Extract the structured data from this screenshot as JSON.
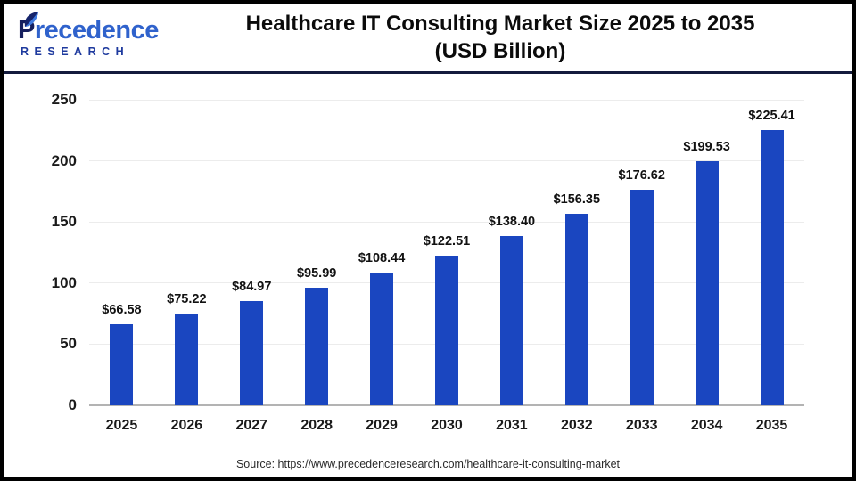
{
  "header": {
    "logo": {
      "brand_top": "Precedence",
      "brand_bottom": "RESEARCH"
    },
    "title_line1": "Healthcare IT Consulting Market Size 2025 to 2035",
    "title_line2": "(USD Billion)"
  },
  "chart_data": {
    "type": "bar",
    "title": "Healthcare IT Consulting Market Size 2025 to 2035 (USD Billion)",
    "categories": [
      "2025",
      "2026",
      "2027",
      "2028",
      "2029",
      "2030",
      "2031",
      "2032",
      "2033",
      "2034",
      "2035"
    ],
    "values": [
      66.58,
      75.22,
      84.97,
      95.99,
      108.44,
      122.51,
      138.4,
      156.35,
      176.62,
      199.53,
      225.41
    ],
    "value_labels": [
      "$66.58",
      "$75.22",
      "$84.97",
      "$95.99",
      "$108.44",
      "$122.51",
      "$138.40",
      "$156.35",
      "$176.62",
      "$199.53",
      "$225.41"
    ],
    "xlabel": "",
    "ylabel": "",
    "ylim": [
      0,
      250
    ],
    "yticks": [
      0,
      50,
      100,
      150,
      200,
      250
    ],
    "grid": true,
    "legend": "none",
    "bar_color": "#1a46c0"
  },
  "footer": {
    "source": "Source: https://www.precedenceresearch.com/healthcare-it-consulting-market"
  },
  "colors": {
    "bar": "#1a46c0",
    "header_rule": "#141b3d",
    "grid_line": "#ececec",
    "axis_line": "#b3b3b3",
    "logo_navy": "#151f5e",
    "logo_blue": "#2f62cc",
    "title_text": "#0b0b0b"
  }
}
